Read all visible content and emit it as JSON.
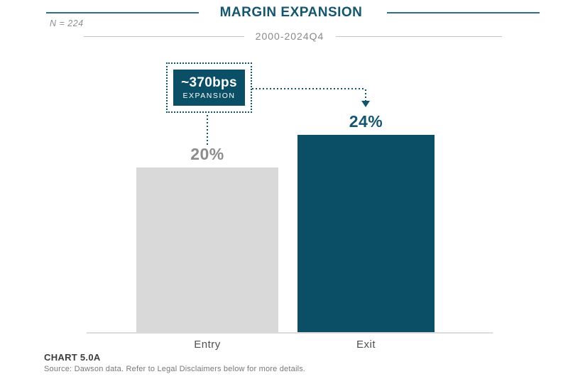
{
  "meta": {
    "sample_size": "N = 224"
  },
  "header": {
    "title": "MARGIN EXPANSION",
    "subtitle": "2000-2024Q4",
    "title_color": "#15566F",
    "rule_color": "#2E6E86"
  },
  "callout": {
    "value": "~370bps",
    "label": "EXPANSION",
    "fill_color": "#0A4F66",
    "text_color": "#FFFFFF"
  },
  "chart_data": {
    "type": "bar",
    "title": "MARGIN EXPANSION",
    "subtitle": "2000-2024Q4",
    "sample_size": "N = 224",
    "categories": [
      "Entry",
      "Exit"
    ],
    "values": [
      20,
      24
    ],
    "unit": "percent",
    "value_labels": [
      "20%",
      "24%"
    ],
    "value_label_colors": [
      "#8C8C8C",
      "#15566F"
    ],
    "bar_colors": [
      "#D9D9D9",
      "#0A4F66"
    ],
    "annotation": {
      "value": "~370bps",
      "label": "EXPANSION"
    },
    "baseline": 0,
    "y_axis_visible": false,
    "gridlines": false,
    "legend": false
  },
  "footer": {
    "chart_label": "CHART 5.0A",
    "source": "Source: Dawson data. Refer to Legal Disclaimers below for more details."
  }
}
